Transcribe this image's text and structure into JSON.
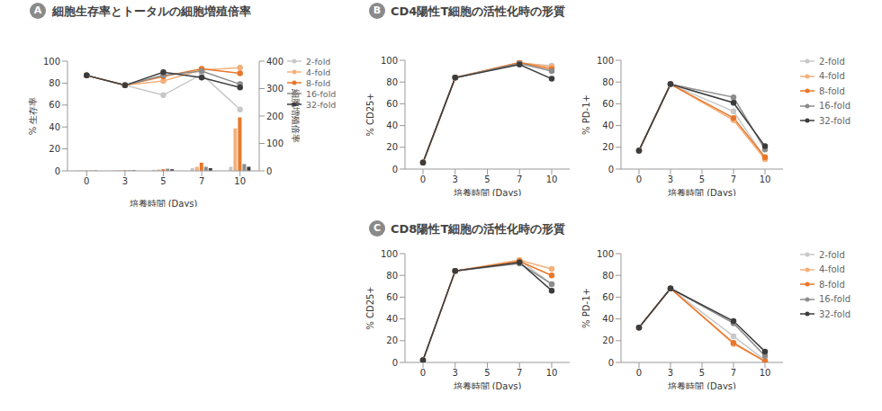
{
  "chart_data": [
    {
      "panel": "A",
      "title": "細胞生存率とトータルの細胞増殖倍率",
      "type": "combo",
      "categories": [
        0,
        3,
        5,
        7,
        10
      ],
      "x_label": "培養時間 (Days)",
      "y_label": "% 生存率",
      "y2_label": "細胞増殖倍率",
      "ylim": [
        0,
        100
      ],
      "yticks": [
        0,
        20,
        40,
        60,
        80,
        100
      ],
      "y2lim": [
        0,
        400
      ],
      "y2ticks": [
        0,
        100,
        200,
        300,
        400
      ],
      "legend": "right",
      "grid": false,
      "series": [
        {
          "name": "2-fold",
          "type": "bar",
          "axis": "y2",
          "color": "#c8c8c8",
          "values": [
            1,
            2,
            4,
            10,
            15
          ]
        },
        {
          "name": "4-fold",
          "type": "bar",
          "axis": "y2",
          "color": "#f4b07a",
          "values": [
            1,
            2,
            5,
            15,
            155
          ]
        },
        {
          "name": "8-fold",
          "type": "bar",
          "axis": "y2",
          "color": "#e8772a",
          "values": [
            1,
            2,
            6,
            30,
            195
          ]
        },
        {
          "name": "16-fold",
          "type": "bar",
          "axis": "y2",
          "color": "#8c8c8c",
          "values": [
            1,
            2,
            8,
            15,
            25
          ]
        },
        {
          "name": "32-fold",
          "type": "bar",
          "axis": "y2",
          "color": "#3c3c3c",
          "values": [
            1,
            2,
            6,
            10,
            15
          ]
        },
        {
          "name": "2-fold",
          "type": "line",
          "marker": "circle",
          "line_style": "solid",
          "color": "#c8c8c8",
          "values": [
            87,
            78,
            69,
            88,
            56
          ]
        },
        {
          "name": "4-fold",
          "type": "line",
          "marker": "circle",
          "line_style": "solid",
          "color": "#f4b07a",
          "values": [
            87,
            78,
            82,
            92,
            94
          ]
        },
        {
          "name": "8-fold",
          "type": "line",
          "marker": "circle",
          "line_style": "solid",
          "color": "#e8772a",
          "values": [
            87,
            78,
            86,
            93,
            89
          ]
        },
        {
          "name": "16-fold",
          "type": "line",
          "marker": "circle",
          "line_style": "solid",
          "color": "#8c8c8c",
          "values": [
            87,
            78,
            87,
            91,
            79
          ]
        },
        {
          "name": "32-fold",
          "type": "line",
          "marker": "circle",
          "line_style": "solid",
          "color": "#3c3c3c",
          "values": [
            87,
            78,
            90,
            85,
            76
          ]
        }
      ]
    },
    {
      "panel": "B",
      "title": "CD4陽性T細胞の活性化時の形質",
      "type": "line",
      "categories": [
        0,
        3,
        5,
        7,
        10
      ],
      "x_label": "培養時間 (Days)",
      "y_label": "% CD25+",
      "ylim": [
        0,
        100
      ],
      "yticks": [
        0,
        20,
        40,
        60,
        80,
        100
      ],
      "grid": false,
      "series": [
        {
          "name": "2-fold",
          "marker": "circle",
          "line_style": "solid",
          "color": "#c8c8c8",
          "values": [
            6,
            84,
            null,
            97,
            95
          ]
        },
        {
          "name": "4-fold",
          "marker": "circle",
          "line_style": "solid",
          "color": "#f4b07a",
          "values": [
            6,
            84,
            null,
            98,
            94
          ]
        },
        {
          "name": "8-fold",
          "marker": "circle",
          "line_style": "solid",
          "color": "#e8772a",
          "values": [
            6,
            84,
            null,
            98,
            92
          ]
        },
        {
          "name": "16-fold",
          "marker": "circle",
          "line_style": "solid",
          "color": "#8c8c8c",
          "values": [
            6,
            84,
            null,
            97,
            90
          ]
        },
        {
          "name": "32-fold",
          "marker": "circle",
          "line_style": "solid",
          "color": "#3c3c3c",
          "values": [
            6,
            84,
            null,
            96,
            83
          ]
        }
      ]
    },
    {
      "type": "line",
      "categories": [
        0,
        3,
        5,
        7,
        10
      ],
      "x_label": "培養時間 (Days)",
      "y_label": "% PD-1+",
      "ylim": [
        0,
        100
      ],
      "yticks": [
        0,
        20,
        40,
        60,
        80,
        100
      ],
      "legend": "right",
      "grid": false,
      "series": [
        {
          "name": "2-fold",
          "marker": "circle",
          "line_style": "solid",
          "color": "#c8c8c8",
          "values": [
            17,
            78,
            null,
            53,
            10
          ]
        },
        {
          "name": "4-fold",
          "marker": "circle",
          "line_style": "solid",
          "color": "#f4b07a",
          "values": [
            17,
            78,
            null,
            45,
            9
          ]
        },
        {
          "name": "8-fold",
          "marker": "circle",
          "line_style": "solid",
          "color": "#e8772a",
          "values": [
            17,
            78,
            null,
            47,
            11
          ]
        },
        {
          "name": "16-fold",
          "marker": "circle",
          "line_style": "solid",
          "color": "#8c8c8c",
          "values": [
            17,
            78,
            null,
            66,
            18
          ]
        },
        {
          "name": "32-fold",
          "marker": "circle",
          "line_style": "solid",
          "color": "#3c3c3c",
          "values": [
            17,
            78,
            null,
            61,
            21
          ]
        }
      ]
    },
    {
      "panel": "C",
      "title": "CD8陽性T細胞の活性化時の形質",
      "type": "line",
      "categories": [
        0,
        3,
        5,
        7,
        10
      ],
      "x_label": "培養時間 (Days)",
      "y_label": "% CD25+",
      "ylim": [
        0,
        100
      ],
      "yticks": [
        0,
        20,
        40,
        60,
        80,
        100
      ],
      "grid": false,
      "series": [
        {
          "name": "2-fold",
          "marker": "circle",
          "line_style": "solid",
          "color": "#c8c8c8",
          "values": [
            2,
            84,
            null,
            94,
            72
          ]
        },
        {
          "name": "4-fold",
          "marker": "circle",
          "line_style": "solid",
          "color": "#f4b07a",
          "values": [
            2,
            84,
            null,
            94,
            86
          ]
        },
        {
          "name": "8-fold",
          "marker": "circle",
          "line_style": "solid",
          "color": "#e8772a",
          "values": [
            2,
            84,
            null,
            93,
            80
          ]
        },
        {
          "name": "16-fold",
          "marker": "circle",
          "line_style": "solid",
          "color": "#8c8c8c",
          "values": [
            2,
            84,
            null,
            91,
            72
          ]
        },
        {
          "name": "32-fold",
          "marker": "circle",
          "line_style": "solid",
          "color": "#3c3c3c",
          "values": [
            2,
            84,
            null,
            92,
            66
          ]
        }
      ]
    },
    {
      "type": "line",
      "categories": [
        0,
        3,
        5,
        7,
        10
      ],
      "x_label": "培養時間 (Days)",
      "y_label": "% PD-1+",
      "ylim": [
        0,
        100
      ],
      "yticks": [
        0,
        20,
        40,
        60,
        80,
        100
      ],
      "legend": "right",
      "grid": false,
      "series": [
        {
          "name": "2-fold",
          "marker": "circle",
          "line_style": "solid",
          "color": "#c8c8c8",
          "values": [
            32,
            68,
            null,
            24,
            2
          ]
        },
        {
          "name": "4-fold",
          "marker": "circle",
          "line_style": "solid",
          "color": "#f4b07a",
          "values": [
            32,
            68,
            null,
            17,
            1
          ]
        },
        {
          "name": "8-fold",
          "marker": "circle",
          "line_style": "solid",
          "color": "#e8772a",
          "values": [
            32,
            68,
            null,
            18,
            1
          ]
        },
        {
          "name": "16-fold",
          "marker": "circle",
          "line_style": "solid",
          "color": "#8c8c8c",
          "values": [
            32,
            68,
            null,
            36,
            6
          ]
        },
        {
          "name": "32-fold",
          "marker": "circle",
          "line_style": "solid",
          "color": "#3c3c3c",
          "values": [
            32,
            68,
            null,
            38,
            10
          ]
        }
      ]
    }
  ]
}
